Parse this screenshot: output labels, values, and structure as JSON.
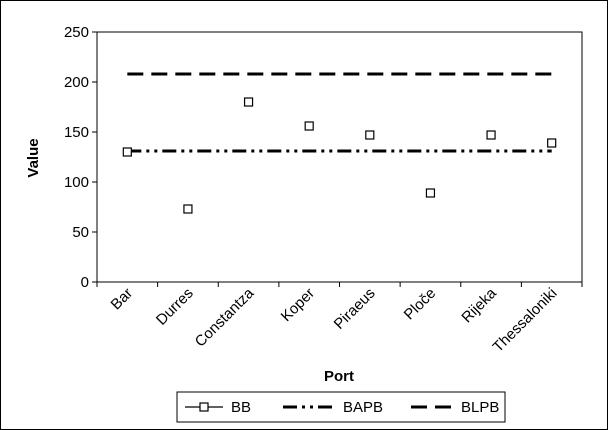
{
  "chart_data": {
    "type": "scatter",
    "title": "",
    "xlabel": "Port",
    "ylabel": "Value",
    "ylim": [
      0,
      250
    ],
    "yticks": [
      0,
      50,
      100,
      150,
      200,
      250
    ],
    "grid": false,
    "legend_position": "bottom",
    "categories": [
      "Bar",
      "Durres",
      "Constantza",
      "Koper",
      "Piraeus",
      "Ploče",
      "Rijeka",
      "Thessaloniki"
    ],
    "series": [
      {
        "name": "BB",
        "kind": "markers",
        "marker": "square-open",
        "color": "#000000",
        "values": [
          130,
          73,
          180,
          156,
          147,
          89,
          147,
          139
        ]
      },
      {
        "name": "BAPB",
        "kind": "line",
        "dash": "dash-dot-dot",
        "color": "#000000",
        "values": [
          131,
          131,
          131,
          131,
          131,
          131,
          131,
          131
        ]
      },
      {
        "name": "BLPB",
        "kind": "line",
        "dash": "dash",
        "color": "#000000",
        "values": [
          208,
          208,
          208,
          208,
          208,
          208,
          208,
          208
        ]
      }
    ]
  }
}
